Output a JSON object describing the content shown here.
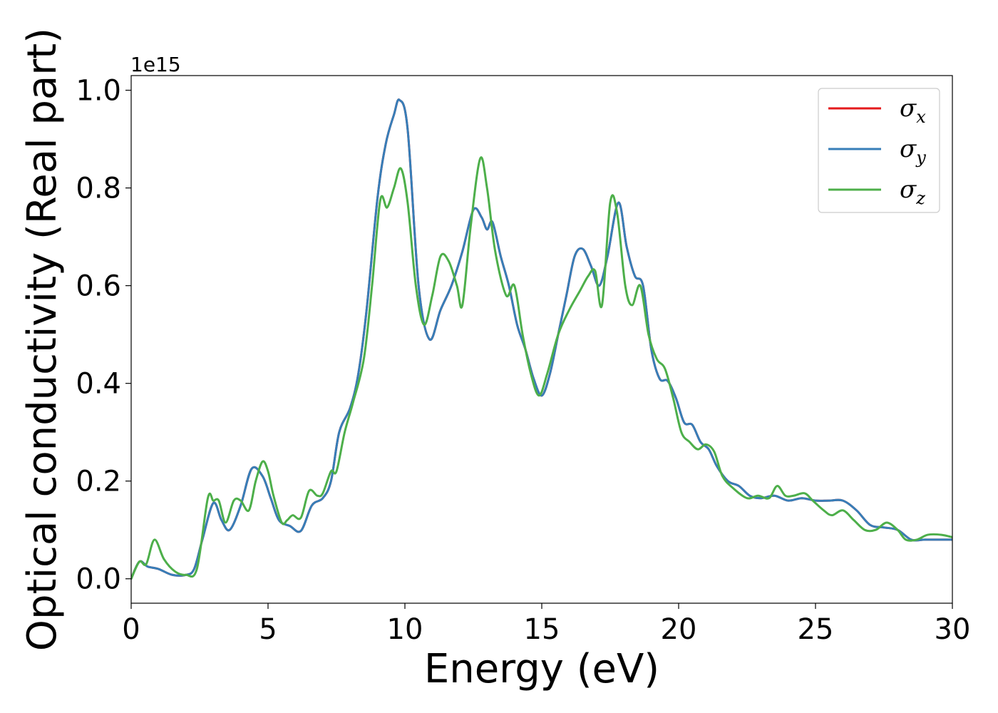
{
  "chart_data": {
    "type": "line",
    "title": "",
    "xlabel": "Energy (eV)",
    "ylabel": "Optical conductivity (Real part)",
    "y_offset_label": "1e15",
    "xlim": [
      0,
      30
    ],
    "ylim": [
      -0.05,
      1.03
    ],
    "xticks": [
      0,
      5,
      10,
      15,
      20,
      25,
      30
    ],
    "xtick_labels": [
      "0",
      "5",
      "10",
      "15",
      "20",
      "25",
      "30"
    ],
    "yticks": [
      0.0,
      0.2,
      0.4,
      0.6,
      0.8,
      1.0
    ],
    "ytick_labels": [
      "0.0",
      "0.2",
      "0.4",
      "0.6",
      "0.8",
      "1.0"
    ],
    "grid": false,
    "legend_position": "top-right",
    "series": [
      {
        "name": "σx",
        "symbol": "σ",
        "subscript": "x",
        "color": "#e41a1c",
        "x": [
          0,
          0.3,
          0.6,
          1.0,
          1.5,
          2.0,
          2.3,
          2.6,
          3.0,
          3.3,
          3.6,
          4.0,
          4.4,
          4.8,
          5.1,
          5.4,
          5.8,
          6.2,
          6.6,
          7.0,
          7.3,
          7.6,
          8.0,
          8.3,
          8.6,
          9.0,
          9.3,
          9.6,
          9.8,
          10.1,
          10.5,
          10.9,
          11.3,
          11.7,
          12.1,
          12.5,
          12.8,
          13.0,
          13.2,
          13.5,
          13.8,
          14.1,
          14.4,
          14.7,
          15.0,
          15.3,
          15.6,
          15.9,
          16.2,
          16.5,
          16.8,
          17.1,
          17.4,
          17.8,
          18.1,
          18.4,
          18.7,
          19.0,
          19.3,
          19.6,
          19.9,
          20.2,
          20.5,
          20.8,
          21.1,
          21.4,
          21.8,
          22.2,
          22.6,
          23.0,
          23.5,
          24.0,
          24.5,
          25.0,
          25.5,
          26.0,
          26.5,
          27.0,
          27.5,
          28.0,
          28.5,
          29.0,
          29.5,
          30.0
        ],
        "values": [
          0.0,
          0.035,
          0.025,
          0.02,
          0.008,
          0.008,
          0.02,
          0.08,
          0.155,
          0.12,
          0.1,
          0.15,
          0.225,
          0.21,
          0.165,
          0.12,
          0.108,
          0.098,
          0.15,
          0.165,
          0.2,
          0.3,
          0.35,
          0.42,
          0.55,
          0.78,
          0.89,
          0.95,
          0.98,
          0.92,
          0.6,
          0.49,
          0.55,
          0.6,
          0.67,
          0.755,
          0.74,
          0.715,
          0.73,
          0.66,
          0.6,
          0.52,
          0.47,
          0.41,
          0.375,
          0.42,
          0.5,
          0.58,
          0.66,
          0.675,
          0.64,
          0.6,
          0.66,
          0.77,
          0.68,
          0.62,
          0.6,
          0.47,
          0.41,
          0.405,
          0.37,
          0.32,
          0.315,
          0.28,
          0.265,
          0.23,
          0.2,
          0.19,
          0.17,
          0.165,
          0.17,
          0.16,
          0.165,
          0.16,
          0.16,
          0.16,
          0.14,
          0.11,
          0.105,
          0.1,
          0.08,
          0.08,
          0.08,
          0.08
        ]
      },
      {
        "name": "σy",
        "symbol": "σ",
        "subscript": "y",
        "color": "#377eb8",
        "x": [
          0,
          0.3,
          0.6,
          1.0,
          1.5,
          2.0,
          2.3,
          2.6,
          3.0,
          3.3,
          3.6,
          4.0,
          4.4,
          4.8,
          5.1,
          5.4,
          5.8,
          6.2,
          6.6,
          7.0,
          7.3,
          7.6,
          8.0,
          8.3,
          8.6,
          9.0,
          9.3,
          9.6,
          9.8,
          10.1,
          10.5,
          10.9,
          11.3,
          11.7,
          12.1,
          12.5,
          12.8,
          13.0,
          13.2,
          13.5,
          13.8,
          14.1,
          14.4,
          14.7,
          15.0,
          15.3,
          15.6,
          15.9,
          16.2,
          16.5,
          16.8,
          17.1,
          17.4,
          17.8,
          18.1,
          18.4,
          18.7,
          19.0,
          19.3,
          19.6,
          19.9,
          20.2,
          20.5,
          20.8,
          21.1,
          21.4,
          21.8,
          22.2,
          22.6,
          23.0,
          23.5,
          24.0,
          24.5,
          25.0,
          25.5,
          26.0,
          26.5,
          27.0,
          27.5,
          28.0,
          28.5,
          29.0,
          29.5,
          30.0
        ],
        "values": [
          0.0,
          0.035,
          0.025,
          0.02,
          0.008,
          0.008,
          0.02,
          0.08,
          0.155,
          0.12,
          0.1,
          0.15,
          0.225,
          0.21,
          0.165,
          0.12,
          0.108,
          0.098,
          0.15,
          0.165,
          0.2,
          0.3,
          0.35,
          0.42,
          0.55,
          0.78,
          0.89,
          0.95,
          0.98,
          0.92,
          0.6,
          0.49,
          0.55,
          0.6,
          0.67,
          0.755,
          0.74,
          0.715,
          0.73,
          0.66,
          0.6,
          0.52,
          0.47,
          0.41,
          0.375,
          0.42,
          0.5,
          0.58,
          0.66,
          0.675,
          0.64,
          0.6,
          0.66,
          0.77,
          0.68,
          0.62,
          0.6,
          0.47,
          0.41,
          0.405,
          0.37,
          0.32,
          0.315,
          0.28,
          0.265,
          0.23,
          0.2,
          0.19,
          0.17,
          0.165,
          0.17,
          0.16,
          0.165,
          0.16,
          0.16,
          0.16,
          0.14,
          0.11,
          0.105,
          0.1,
          0.08,
          0.08,
          0.08,
          0.08
        ]
      },
      {
        "name": "σz",
        "symbol": "σ",
        "subscript": "z",
        "color": "#4daf4a",
        "x": [
          0,
          0.3,
          0.55,
          0.85,
          1.2,
          1.6,
          2.0,
          2.4,
          2.8,
          3.0,
          3.2,
          3.45,
          3.75,
          4.0,
          4.3,
          4.55,
          4.8,
          5.0,
          5.2,
          5.5,
          5.7,
          5.9,
          6.2,
          6.5,
          6.8,
          7.0,
          7.3,
          7.5,
          7.8,
          8.1,
          8.5,
          8.8,
          9.1,
          9.35,
          9.6,
          9.85,
          10.1,
          10.4,
          10.7,
          11.0,
          11.3,
          11.6,
          11.9,
          12.1,
          12.4,
          12.75,
          13.0,
          13.3,
          13.7,
          14.0,
          14.3,
          14.6,
          14.9,
          15.2,
          15.6,
          16.0,
          16.4,
          16.7,
          16.95,
          17.2,
          17.5,
          17.75,
          18.05,
          18.3,
          18.6,
          18.9,
          19.2,
          19.5,
          19.8,
          20.1,
          20.4,
          20.7,
          21.0,
          21.3,
          21.6,
          22.0,
          22.5,
          22.9,
          23.3,
          23.6,
          23.9,
          24.2,
          24.6,
          24.9,
          25.3,
          25.6,
          26.0,
          26.4,
          26.8,
          27.2,
          27.6,
          28.0,
          28.3,
          28.7,
          29.1,
          29.6,
          30.0
        ],
        "values": [
          0.0,
          0.035,
          0.03,
          0.08,
          0.04,
          0.015,
          0.008,
          0.02,
          0.165,
          0.16,
          0.16,
          0.115,
          0.16,
          0.16,
          0.14,
          0.2,
          0.24,
          0.22,
          0.17,
          0.115,
          0.12,
          0.13,
          0.125,
          0.18,
          0.17,
          0.175,
          0.22,
          0.22,
          0.3,
          0.36,
          0.45,
          0.6,
          0.775,
          0.76,
          0.8,
          0.84,
          0.77,
          0.6,
          0.52,
          0.58,
          0.66,
          0.65,
          0.6,
          0.56,
          0.72,
          0.86,
          0.8,
          0.67,
          0.58,
          0.6,
          0.5,
          0.42,
          0.375,
          0.42,
          0.5,
          0.55,
          0.59,
          0.62,
          0.63,
          0.56,
          0.77,
          0.75,
          0.6,
          0.56,
          0.6,
          0.5,
          0.45,
          0.43,
          0.37,
          0.3,
          0.28,
          0.265,
          0.275,
          0.26,
          0.21,
          0.185,
          0.165,
          0.17,
          0.165,
          0.19,
          0.17,
          0.17,
          0.175,
          0.16,
          0.14,
          0.13,
          0.14,
          0.12,
          0.1,
          0.1,
          0.115,
          0.1,
          0.08,
          0.08,
          0.09,
          0.09,
          0.085
        ]
      }
    ]
  }
}
